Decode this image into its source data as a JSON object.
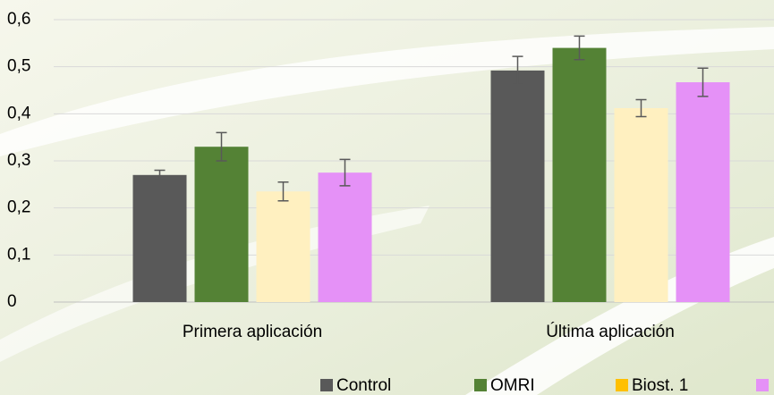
{
  "chart_data": {
    "type": "bar",
    "categories": [
      "Primera aplicación",
      "Última aplicación"
    ],
    "series": [
      {
        "name": "Control",
        "color": "#595959",
        "values": [
          0.27,
          0.492
        ],
        "errors": [
          0.01,
          0.03
        ]
      },
      {
        "name": "OMRI",
        "color": "#548235",
        "values": [
          0.33,
          0.54
        ],
        "errors": [
          0.03,
          0.025
        ]
      },
      {
        "name": "Biost. 1",
        "color": "#ffc000",
        "bar_color": "#fff0c0",
        "values": [
          0.235,
          0.412
        ],
        "errors": [
          0.02,
          0.018
        ]
      },
      {
        "color": "#e591f7",
        "values": [
          0.275,
          0.467
        ],
        "errors": [
          0.028,
          0.03
        ]
      }
    ],
    "ylim": [
      0,
      0.6
    ],
    "yticks": [
      {
        "value": 0,
        "label": "0"
      },
      {
        "value": 0.1,
        "label": "0,1"
      },
      {
        "value": 0.2,
        "label": "0,2"
      },
      {
        "value": 0.3,
        "label": "0,3"
      },
      {
        "value": 0.4,
        "label": "0,4"
      },
      {
        "value": 0.5,
        "label": "0,5"
      },
      {
        "value": 0.6,
        "label": "0,6"
      }
    ],
    "grid": true,
    "legend": "bottom"
  }
}
